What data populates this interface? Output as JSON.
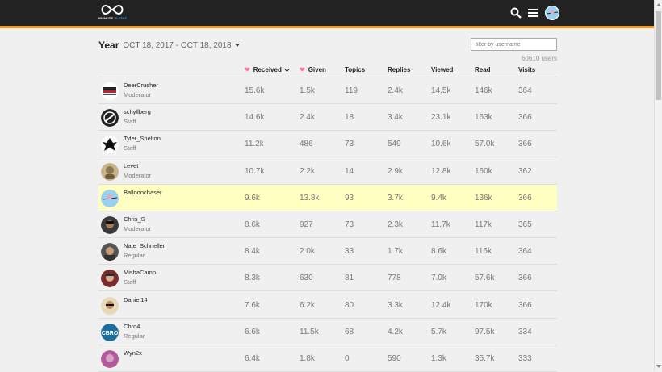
{
  "header": {
    "logo_name": "INFINITE",
    "logo_accent": "FLIGHT",
    "accent_color": "#f7941d"
  },
  "period": {
    "label": "Year",
    "range": "OCT 18, 2017 - OCT 18, 2018"
  },
  "filter": {
    "placeholder": "filter by username"
  },
  "users_count": "60610 users",
  "columns": {
    "received": "Received",
    "given": "Given",
    "topics": "Topics",
    "replies": "Replies",
    "viewed": "Viewed",
    "read": "Read",
    "visits": "Visits"
  },
  "rows": [
    {
      "username": "DeerCrusher",
      "title": "Moderator",
      "received": "15.6k",
      "given": "1.5k",
      "topics": "119",
      "replies": "2.4k",
      "viewed": "14.5k",
      "read": "146k",
      "visits": "364"
    },
    {
      "username": "schyllberg",
      "title": "Staff",
      "received": "14.6k",
      "given": "2.4k",
      "topics": "18",
      "replies": "3.4k",
      "viewed": "23.1k",
      "read": "163k",
      "visits": "366"
    },
    {
      "username": "Tyler_Shelton",
      "title": "Staff",
      "received": "11.2k",
      "given": "486",
      "topics": "73",
      "replies": "549",
      "viewed": "10.6k",
      "read": "57.0k",
      "visits": "366"
    },
    {
      "username": "Levet",
      "title": "Moderator",
      "received": "10.7k",
      "given": "2.2k",
      "topics": "14",
      "replies": "2.9k",
      "viewed": "12.8k",
      "read": "160k",
      "visits": "362"
    },
    {
      "username": "Balloonchaser",
      "title": "",
      "received": "9.6k",
      "given": "13.8k",
      "topics": "93",
      "replies": "3.7k",
      "viewed": "9.4k",
      "read": "136k",
      "visits": "366"
    },
    {
      "username": "Chris_S",
      "title": "Moderator",
      "received": "8.6k",
      "given": "927",
      "topics": "73",
      "replies": "2.3k",
      "viewed": "11.7k",
      "read": "117k",
      "visits": "365"
    },
    {
      "username": "Nate_Schneller",
      "title": "Regular",
      "received": "8.4k",
      "given": "2.0k",
      "topics": "33",
      "replies": "1.7k",
      "viewed": "8.6k",
      "read": "116k",
      "visits": "364"
    },
    {
      "username": "MishaCamp",
      "title": "Staff",
      "received": "8.3k",
      "given": "630",
      "topics": "81",
      "replies": "778",
      "viewed": "7.0k",
      "read": "57.6k",
      "visits": "366"
    },
    {
      "username": "Daniel14",
      "title": "",
      "received": "7.6k",
      "given": "6.2k",
      "topics": "80",
      "replies": "3.3k",
      "viewed": "12.4k",
      "read": "170k",
      "visits": "366"
    },
    {
      "username": "Cbro4",
      "title": "Regular",
      "received": "6.6k",
      "given": "11.5k",
      "topics": "68",
      "replies": "4.2k",
      "viewed": "5.7k",
      "read": "97.5k",
      "visits": "334"
    },
    {
      "username": "Wyn2x",
      "title": "",
      "received": "6.4k",
      "given": "1.8k",
      "topics": "0",
      "replies": "590",
      "viewed": "1.3k",
      "read": "35.7k",
      "visits": "333"
    }
  ],
  "avatars": {
    "DeerCrusher": {
      "text": "DEER"
    },
    "Cbro4": {
      "text": "CBRO"
    }
  }
}
